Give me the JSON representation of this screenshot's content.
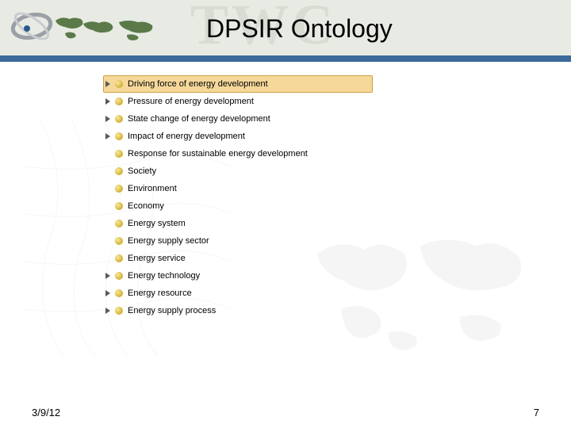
{
  "header": {
    "watermark": "TWC",
    "title": "DPSIR Ontology",
    "divider_color": "#3c6a9a",
    "header_bg": "#e8ebe3"
  },
  "tree": {
    "bullet_color": "#d8b840",
    "selected_bg": "#f5d89a",
    "selected_border": "#d0a040",
    "font_size": 11,
    "items": [
      {
        "label": "Driving force of energy development",
        "has_arrow": true,
        "selected": true
      },
      {
        "label": "Pressure of energy development",
        "has_arrow": true,
        "selected": false
      },
      {
        "label": "State change of energy development",
        "has_arrow": true,
        "selected": false
      },
      {
        "label": "Impact of energy development",
        "has_arrow": true,
        "selected": false
      },
      {
        "label": "Response for sustainable energy development",
        "has_arrow": false,
        "selected": false
      },
      {
        "label": "Society",
        "has_arrow": false,
        "selected": false
      },
      {
        "label": "Environment",
        "has_arrow": false,
        "selected": false
      },
      {
        "label": "Economy",
        "has_arrow": false,
        "selected": false
      },
      {
        "label": "Energy system",
        "has_arrow": false,
        "selected": false
      },
      {
        "label": "Energy supply sector",
        "has_arrow": false,
        "selected": false
      },
      {
        "label": "Energy service",
        "has_arrow": false,
        "selected": false
      },
      {
        "label": "Energy technology",
        "has_arrow": true,
        "selected": false
      },
      {
        "label": "Energy resource",
        "has_arrow": true,
        "selected": false
      },
      {
        "label": "Energy supply process",
        "has_arrow": true,
        "selected": false
      }
    ]
  },
  "footer": {
    "date": "3/9/12",
    "page_number": "7"
  }
}
